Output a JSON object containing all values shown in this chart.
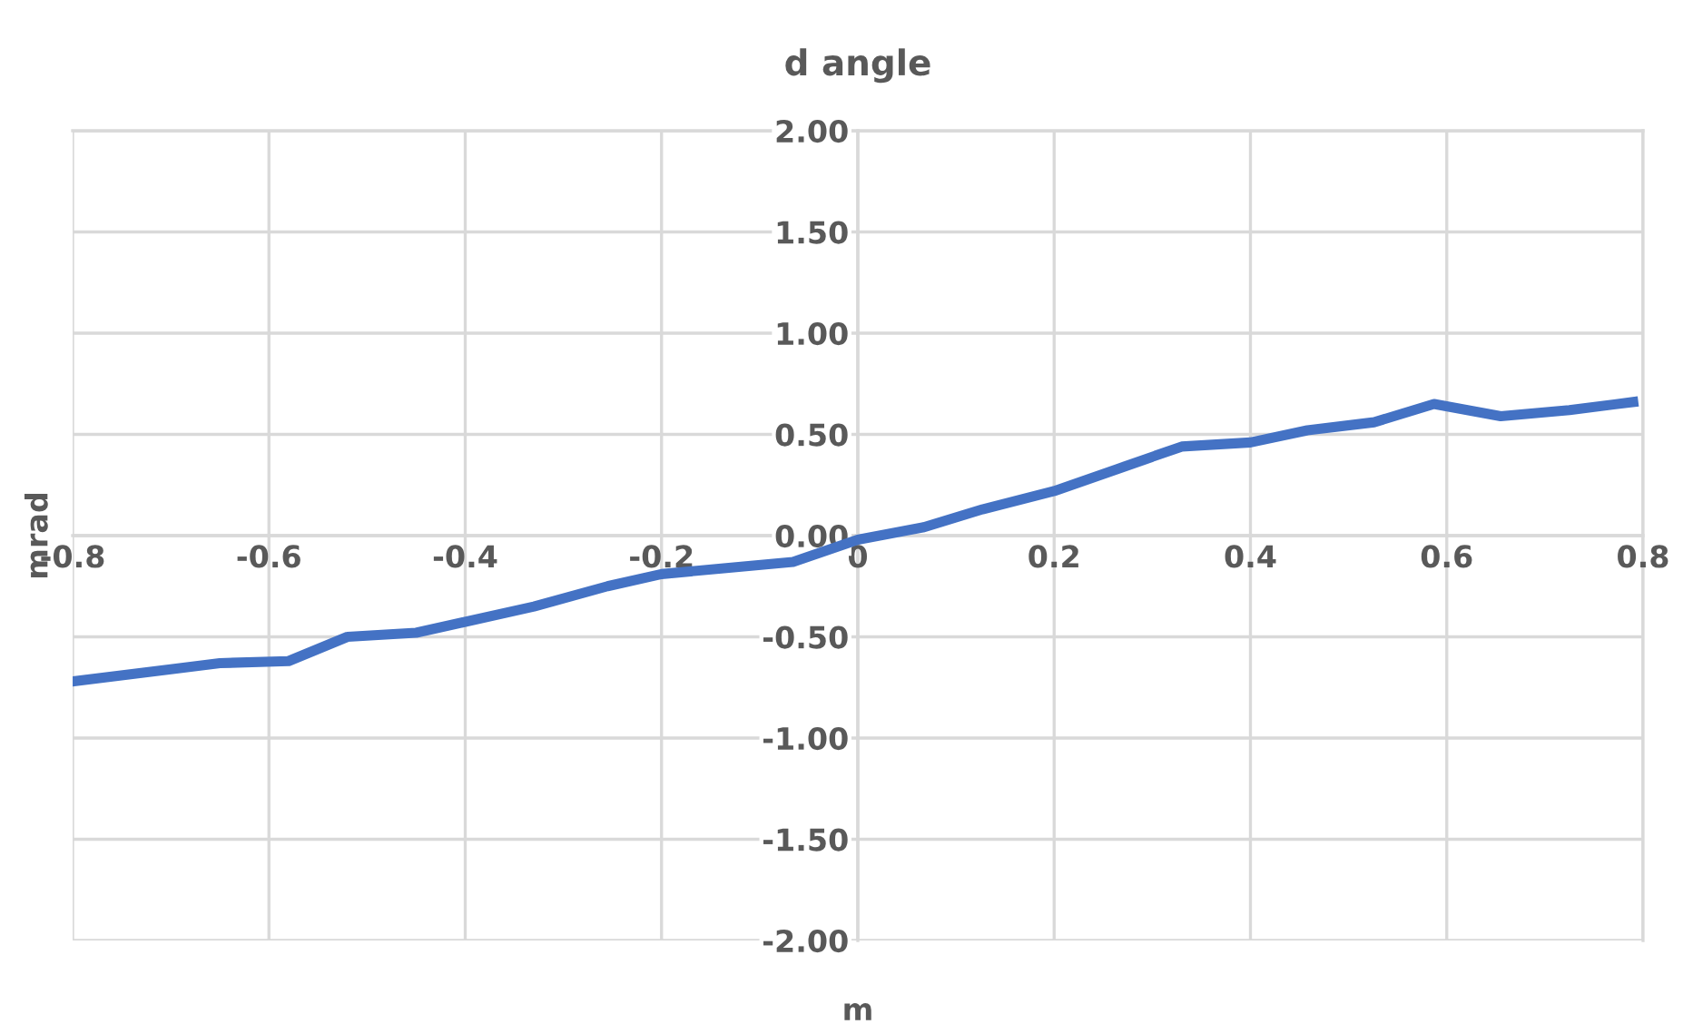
{
  "chart_data": {
    "type": "line",
    "title": "d angle",
    "xlabel": "m",
    "ylabel": "mrad",
    "series": [
      {
        "color": "#4472c4",
        "x": [
          -0.8,
          -0.7,
          -0.65,
          -0.58,
          -0.52,
          -0.45,
          -0.33,
          -0.255,
          -0.2,
          -0.134,
          -0.066,
          0,
          0.066,
          0.127,
          0.2,
          0.265,
          0.33,
          0.4,
          0.458,
          0.526,
          0.587,
          0.655,
          0.725,
          0.79
        ],
        "values": [
          -0.72,
          -0.66,
          -0.63,
          -0.62,
          -0.5,
          -0.48,
          -0.35,
          -0.25,
          -0.19,
          -0.16,
          -0.13,
          -0.02,
          0.04,
          0.13,
          0.22,
          0.33,
          0.44,
          0.46,
          0.52,
          0.56,
          0.65,
          0.59,
          0.62,
          0.66
        ]
      }
    ],
    "xlim": [
      -0.8,
      0.8
    ],
    "xticks": [
      -0.8,
      -0.6,
      -0.4,
      -0.2,
      0,
      0.2,
      0.4,
      0.6,
      0.8
    ],
    "ylim": [
      -2,
      2
    ],
    "yticks": [
      {
        "value": -2,
        "label": "-2.00"
      },
      {
        "value": -1.5,
        "label": "-1.50"
      },
      {
        "value": -1,
        "label": "-1.00"
      },
      {
        "value": -0.5,
        "label": "-0.50"
      },
      {
        "value": 0,
        "label": "0.00"
      },
      {
        "value": 0.5,
        "label": "0.50"
      },
      {
        "value": 1,
        "label": "1.00"
      },
      {
        "value": 1.5,
        "label": "1.50"
      },
      {
        "value": 2,
        "label": "2.00"
      }
    ],
    "grid": true,
    "legend": false,
    "marker": "none",
    "line_style": "solid"
  }
}
